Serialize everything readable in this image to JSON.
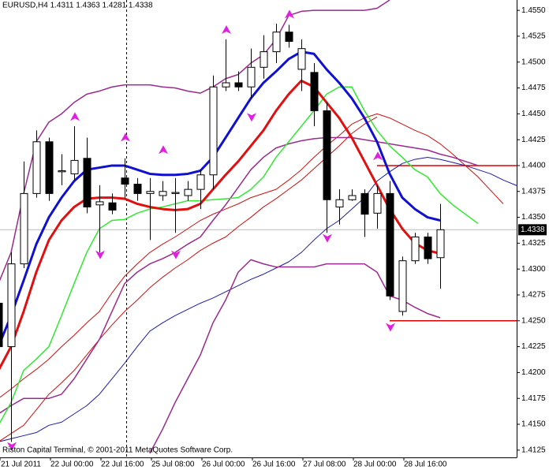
{
  "chart_data": {
    "type": "candlestick",
    "title": "EURUSD,H4  1.4311 1.4363 1.4281 1.4338",
    "footer": "Riston Capital Terminal, © 2001-2011 MetaQuotes Software Corp.",
    "categories": [
      "21 Jul 2011",
      null,
      null,
      null,
      "22 Jul 00:00",
      null,
      null,
      null,
      "22 Jul 16:00",
      null,
      null,
      null,
      "25 Jul 08:00",
      null,
      null,
      null,
      "26 Jul 00:00",
      null,
      null,
      null,
      "26 Jul 16:00",
      null,
      null,
      null,
      "27 Jul 08:00",
      null,
      null,
      null,
      "28 Jul 00:00",
      null,
      null,
      null,
      "28 Jul 16:00",
      null,
      null,
      null,
      null,
      null,
      null,
      null,
      null,
      null,
      null
    ],
    "open": [
      1.4267,
      1.4225,
      1.4305,
      1.4373,
      1.4423,
      1.4394,
      1.4392,
      1.4407,
      1.4362,
      1.4364,
      1.4388,
      1.4382,
      1.4373,
      1.4371,
      1.4373,
      1.4371,
      1.4377,
      1.4391,
      1.4476,
      1.448,
      1.4476,
      1.4495,
      1.451,
      1.4529,
      1.4493,
      1.449,
      1.4453,
      1.436,
      1.4367,
      1.4373,
      1.4354,
      1.4373,
      1.4259,
      1.4308,
      1.4331,
      1.4311,
      null,
      null,
      null,
      null,
      null,
      null,
      null
    ],
    "high": [
      1.4286,
      1.4316,
      1.4404,
      1.4434,
      1.4427,
      1.4411,
      1.4438,
      1.4427,
      1.4381,
      1.4373,
      1.4407,
      1.4388,
      1.4388,
      1.4385,
      1.4388,
      1.4385,
      1.4396,
      1.4487,
      1.4522,
      1.4491,
      1.4513,
      1.4526,
      1.4537,
      1.4536,
      1.4522,
      1.4499,
      1.4461,
      1.4377,
      1.4377,
      1.4377,
      1.4381,
      1.4385,
      1.4312,
      1.4335,
      1.4335,
      1.4363,
      null,
      null,
      null,
      null,
      null,
      null,
      null
    ],
    "low": [
      1.4213,
      1.4133,
      1.4301,
      1.4369,
      1.4366,
      1.4381,
      1.4386,
      1.4354,
      1.4316,
      1.4353,
      1.4369,
      1.4366,
      1.4328,
      1.4366,
      1.4335,
      1.4366,
      1.4358,
      1.4377,
      1.4472,
      1.4472,
      1.4465,
      1.4484,
      1.4499,
      1.4514,
      1.4472,
      1.4438,
      1.4335,
      1.4343,
      1.4366,
      1.4331,
      1.4339,
      1.427,
      1.4255,
      1.4305,
      1.4305,
      1.4281,
      null,
      null,
      null,
      null,
      null,
      null,
      null
    ],
    "close": [
      1.4225,
      1.4305,
      1.4373,
      1.4423,
      1.4373,
      1.4395,
      1.4405,
      1.436,
      1.4365,
      1.4357,
      1.4382,
      1.4373,
      1.4375,
      1.4375,
      1.4374,
      1.4377,
      1.4391,
      1.4476,
      1.448,
      1.4476,
      1.4495,
      1.451,
      1.4529,
      1.452,
      1.4513,
      1.4453,
      1.4367,
      1.4367,
      1.4371,
      1.4353,
      1.4373,
      1.4274,
      1.4308,
      1.4331,
      1.431,
      1.4338,
      null,
      null,
      null,
      null,
      null,
      null,
      null
    ],
    "up_color": "#ffffff",
    "down_color": "#000000",
    "series": [
      {
        "color": "#1c1ca8",
        "width": 1,
        "values": [
          1.4133,
          1.4136,
          1.4139,
          1.4142,
          1.4149,
          1.4152,
          1.416,
          1.4168,
          1.4179,
          1.4194,
          1.4209,
          1.4225,
          1.424,
          1.4248,
          1.4255,
          1.4261,
          1.4267,
          1.4272,
          1.4278,
          1.4284,
          1.429,
          1.4295,
          1.4301,
          1.4307,
          1.4316,
          1.4328,
          1.4339,
          1.4347,
          1.4358,
          1.4369,
          1.4385,
          1.4394,
          1.4402,
          1.4406,
          1.4408,
          1.4406,
          1.4403,
          1.44,
          1.4396,
          1.4392,
          1.4386,
          1.4381,
          1.4376
        ]
      },
      {
        "color": "#cc1111",
        "width": 1,
        "values": [
          1.4175,
          1.4184,
          1.4194,
          1.4203,
          1.4213,
          1.4225,
          1.4236,
          1.4248,
          1.4259,
          1.4277,
          1.4293,
          1.4305,
          1.4316,
          1.4324,
          1.4331,
          1.4339,
          1.4347,
          1.4353,
          1.4358,
          1.4363,
          1.4369,
          1.4373,
          1.4377,
          1.4386,
          1.4396,
          1.4408,
          1.4419,
          1.4429,
          1.444,
          1.4446,
          1.445,
          1.4446,
          1.444,
          1.4434,
          1.4429,
          1.4421,
          1.4411,
          1.44,
          1.4389,
          1.4376,
          1.4363,
          null,
          null
        ]
      },
      {
        "color": "#cc1111",
        "width": 1,
        "values": [
          1.4133,
          1.4141,
          1.4149,
          1.4164,
          1.4179,
          1.419,
          1.4202,
          1.4217,
          1.4232,
          1.4246,
          1.4259,
          1.427,
          1.4282,
          1.4292,
          1.4301,
          1.4309,
          1.4318,
          1.4325,
          1.4331,
          1.4341,
          1.435,
          1.436,
          1.4368,
          1.4377,
          1.4386,
          1.4397,
          1.4408,
          1.4419,
          1.4431,
          1.444,
          1.4447,
          null,
          null,
          null,
          null,
          null,
          null,
          null,
          null,
          null,
          null,
          null,
          null
        ]
      },
      {
        "color": "#9b2a8e",
        "width": 1.5,
        "values": [
          1.4286,
          1.4316,
          1.4373,
          1.4423,
          1.4442,
          1.445,
          1.4461,
          1.4469,
          1.4472,
          1.4476,
          1.4478,
          1.4478,
          1.4478,
          1.4476,
          1.4475,
          1.4472,
          1.447,
          1.4476,
          1.4484,
          1.4488,
          1.4499,
          1.4507,
          1.4522,
          1.4545,
          1.4549,
          1.455,
          1.455,
          1.455,
          1.455,
          1.455,
          1.4552,
          1.456,
          null,
          null,
          null,
          null,
          null,
          null,
          null,
          null,
          null,
          null,
          null
        ]
      },
      {
        "color": "#9b2a8e",
        "width": 1.5,
        "values": [
          1.416,
          1.4168,
          1.4175,
          1.4175,
          1.4175,
          1.4179,
          1.4194,
          1.4213,
          1.4232,
          1.4259,
          1.4286,
          1.4297,
          1.4305,
          1.431,
          1.4316,
          1.4324,
          1.4331,
          1.4347,
          1.4362,
          1.4379,
          1.4396,
          1.4408,
          1.4417,
          1.4421,
          1.4424,
          1.4426,
          1.4427,
          1.4427,
          1.4427,
          1.4425,
          1.4423,
          1.4421,
          1.4419,
          1.4417,
          1.4415,
          1.4411,
          1.4408,
          1.4404,
          1.44,
          null,
          null,
          null,
          null
        ]
      },
      {
        "color": "#9b2a8e",
        "width": 1.5,
        "values": [
          null,
          null,
          null,
          null,
          null,
          null,
          null,
          null,
          null,
          null,
          null,
          null,
          1.4122,
          1.4145,
          1.4171,
          1.4194,
          1.4217,
          1.4248,
          1.427,
          1.4297,
          1.4309,
          1.4305,
          1.4302,
          1.4302,
          1.4302,
          1.4302,
          1.4305,
          1.4305,
          1.4305,
          1.4305,
          1.4297,
          1.4274,
          1.427,
          1.4263,
          1.4257,
          1.4253,
          null,
          null,
          null,
          null,
          null,
          null,
          null
        ]
      },
      {
        "color": "#33e833",
        "width": 1.5,
        "values": [
          1.4149,
          1.4171,
          1.4202,
          1.4213,
          1.4225,
          1.4255,
          1.4286,
          1.4316,
          1.4339,
          1.4347,
          1.4348,
          1.4354,
          1.4358,
          1.436,
          1.4363,
          1.4366,
          1.4366,
          1.4367,
          1.4368,
          1.4369,
          1.4377,
          1.4389,
          1.4408,
          1.4423,
          1.4438,
          1.4453,
          1.4469,
          1.4476,
          1.4476,
          1.4453,
          1.4434,
          1.4419,
          1.4408,
          1.4396,
          1.4389,
          1.4373,
          1.4362,
          1.4353,
          1.4344,
          null,
          null,
          null,
          null
        ]
      },
      {
        "color": "#e01010",
        "width": 3,
        "values": [
          1.4202,
          1.4225,
          1.4259,
          1.4297,
          1.4328,
          1.4347,
          1.436,
          1.4368,
          1.4369,
          1.4369,
          1.4368,
          1.4363,
          1.436,
          1.4358,
          1.4357,
          1.4358,
          1.4363,
          1.4377,
          1.4391,
          1.4404,
          1.4419,
          1.4434,
          1.4453,
          1.4469,
          1.4482,
          1.4476,
          1.4461,
          1.4446,
          1.4427,
          1.4404,
          1.4381,
          1.4358,
          1.4339,
          1.4325,
          1.4318,
          1.4315,
          null,
          null,
          null,
          null,
          null,
          null,
          null
        ]
      },
      {
        "color": "#1010d0",
        "width": 3,
        "values": [
          1.4225,
          1.4255,
          1.4289,
          1.4324,
          1.435,
          1.4369,
          1.4385,
          1.4396,
          1.4398,
          1.44,
          1.44,
          1.4396,
          1.4392,
          1.4391,
          1.4391,
          1.4392,
          1.4395,
          1.4408,
          1.4427,
          1.4446,
          1.4465,
          1.448,
          1.4491,
          1.4503,
          1.451,
          1.4508,
          1.4493,
          1.448,
          1.4465,
          1.4446,
          1.4423,
          1.4392,
          1.4369,
          1.4358,
          1.435,
          1.4347,
          null,
          null,
          null,
          null,
          null,
          null,
          null
        ]
      }
    ],
    "fractals_up": [
      null,
      null,
      null,
      null,
      null,
      null,
      1.4447,
      null,
      null,
      null,
      1.4427,
      null,
      null,
      1.4415,
      null,
      null,
      null,
      null,
      1.4531,
      null,
      null,
      null,
      null,
      1.4546,
      null,
      null,
      null,
      null,
      null,
      null,
      1.4409,
      null,
      null,
      null,
      null,
      null,
      null,
      null,
      null,
      null,
      null,
      null,
      null
    ],
    "fractals_down": [
      null,
      1.4129,
      null,
      null,
      null,
      null,
      null,
      null,
      1.4314,
      null,
      null,
      null,
      null,
      null,
      1.4314,
      null,
      null,
      null,
      null,
      null,
      1.4447,
      null,
      null,
      null,
      null,
      null,
      1.433,
      null,
      null,
      null,
      null,
      1.4244,
      null,
      null,
      null,
      null,
      null,
      null,
      null,
      null,
      null,
      null,
      null
    ],
    "fractal_color": "#e020e0",
    "hlines": [
      {
        "value": 1.44,
        "color": "#dd0000"
      },
      {
        "value": 1.425,
        "color": "#dd0000"
      }
    ],
    "last_price": 1.4338,
    "ylim": [
      1.4118,
      1.456
    ],
    "yticks": [
      1.4125,
      {
        "value": 1.415,
        "label": "1.4150"
      },
      1.4175,
      {
        "value": 1.42,
        "label": "1.4200"
      },
      1.4225,
      {
        "value": 1.425,
        "label": "1.4250"
      },
      1.4275,
      {
        "value": 1.43,
        "label": "1.4300"
      },
      1.4325,
      {
        "value": 1.435,
        "label": "1.4350"
      },
      1.4375,
      {
        "value": 1.44,
        "label": "1.4400"
      },
      1.4425,
      {
        "value": 1.445,
        "label": "1.4450"
      },
      1.4475,
      {
        "value": 1.45,
        "label": "1.4500"
      },
      1.4525,
      {
        "value": 1.455,
        "label": "1.4550"
      }
    ]
  }
}
